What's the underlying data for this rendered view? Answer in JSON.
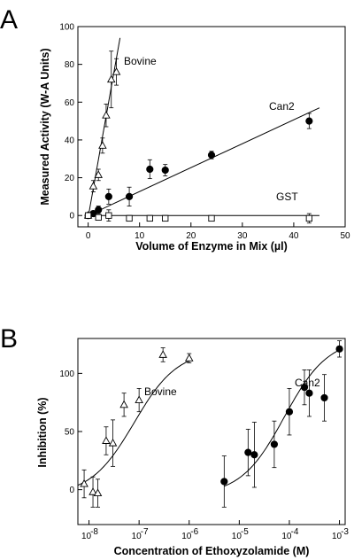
{
  "chart_data": [
    {
      "panel": "A",
      "type": "scatter",
      "xlabel": "Volume of Enzyme in Mix (µl)",
      "ylabel": "Measured Activity (W-A Units)",
      "xlim": [
        -2,
        50
      ],
      "ylim": [
        -6,
        100
      ],
      "xticks": [
        0,
        10,
        20,
        30,
        40,
        50
      ],
      "yticks": [
        0,
        20,
        40,
        60,
        80,
        100
      ],
      "series": [
        {
          "name": "Bovine",
          "marker": "triangle-open",
          "x": [
            0,
            1,
            2,
            2.8,
            3.5,
            4.5,
            5.5
          ],
          "y": [
            0,
            15.5,
            21.5,
            37,
            53,
            72,
            76
          ],
          "err": [
            0.5,
            3,
            3,
            4,
            6,
            15,
            7
          ],
          "fit": {
            "x": [
              0,
              6.2
            ],
            "y": [
              -1,
              94
            ]
          }
        },
        {
          "name": "Can2",
          "marker": "circle-filled",
          "x": [
            0,
            1,
            2,
            4,
            8,
            12,
            15,
            24,
            43
          ],
          "y": [
            0,
            1,
            3,
            10,
            10,
            24.5,
            24,
            32,
            50
          ],
          "err": [
            0.5,
            1,
            2,
            4,
            5,
            5,
            3,
            2,
            4
          ],
          "fit": {
            "x": [
              0,
              45
            ],
            "y": [
              0,
              57
            ]
          }
        },
        {
          "name": "GST",
          "marker": "square-open",
          "x": [
            0,
            2,
            4,
            8,
            12,
            15,
            24,
            43
          ],
          "y": [
            0,
            -1,
            0,
            -1.5,
            -1.5,
            -1.5,
            -1.5,
            -1.5
          ],
          "err": [
            0.5,
            1,
            3,
            1.5,
            1.5,
            1.5,
            1,
            2.5
          ],
          "fit": {
            "x": [
              0,
              45
            ],
            "y": [
              0,
              0
            ]
          }
        }
      ]
    },
    {
      "panel": "B",
      "type": "scatter",
      "xlabel": "Concentration of Ethoxyzolamide (M)",
      "ylabel": "Inhibition (%)",
      "xscale": "log",
      "xlim": [
        6e-09,
        0.0013
      ],
      "ylim": [
        -30,
        130
      ],
      "xticks": [
        {
          "exp": -8,
          "label": "10",
          "sup": "-8"
        },
        {
          "exp": -7,
          "label": "10",
          "sup": "-7"
        },
        {
          "exp": -6,
          "label": "10",
          "sup": "-6"
        },
        {
          "exp": -5,
          "label": "10",
          "sup": "-5"
        },
        {
          "exp": -4,
          "label": "10",
          "sup": "-4"
        },
        {
          "exp": -3,
          "label": "10",
          "sup": "-3"
        }
      ],
      "yticks": [
        0,
        50,
        100
      ],
      "series": [
        {
          "name": "Bovine",
          "marker": "triangle-open",
          "x": [
            8e-09,
            1.2e-08,
            1.5e-08,
            2.2e-08,
            3e-08,
            5e-08,
            1e-07,
            3e-07,
            1e-06
          ],
          "y": [
            5,
            -2,
            -3,
            42,
            40,
            73,
            77,
            116,
            113
          ],
          "err": [
            12,
            13,
            12,
            12,
            20,
            10,
            10,
            6,
            4
          ],
          "fit": {
            "type": "sigmoid",
            "bottom": -5,
            "top": 120,
            "logEC50": -7.1,
            "hill": 1.0,
            "xfrom": 6e-09,
            "xto": 1e-06
          }
        },
        {
          "name": "Can2",
          "marker": "circle-filled",
          "x": [
            5e-06,
            1.5e-05,
            2e-05,
            5e-05,
            0.0001,
            0.0002,
            0.00025,
            0.0005,
            0.001
          ],
          "y": [
            7,
            32,
            30,
            39,
            67,
            88,
            83,
            79,
            121
          ],
          "err": [
            22,
            20,
            28,
            20,
            20,
            15,
            20,
            20,
            7
          ],
          "fit": {
            "type": "sigmoid",
            "bottom": -5,
            "top": 130,
            "logEC50": -4.1,
            "hill": 1.0,
            "xfrom": 5e-06,
            "xto": 0.001
          }
        }
      ]
    }
  ]
}
